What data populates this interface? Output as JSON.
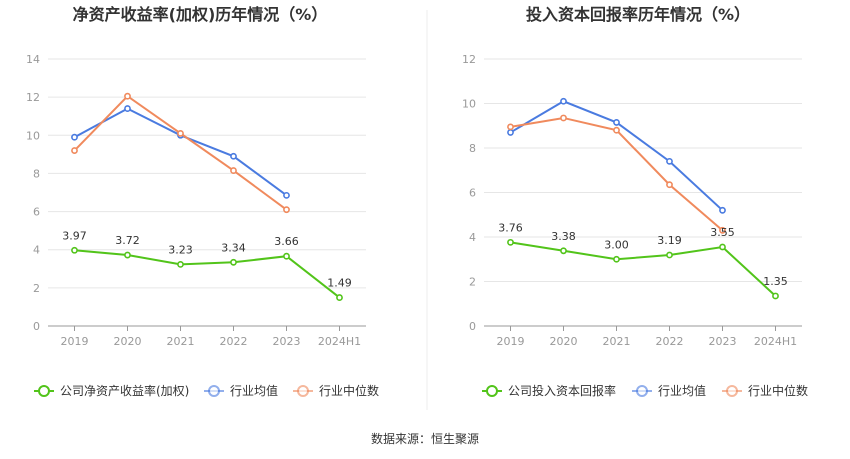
{
  "source_text": "数据来源：恒生聚源",
  "chart_data": [
    {
      "type": "line",
      "title": "净资产收益率(加权)历年情况（%）",
      "categories": [
        "2019",
        "2020",
        "2021",
        "2022",
        "2023",
        "2024H1"
      ],
      "ylim": [
        0,
        14
      ],
      "yticks": [
        0,
        2,
        4,
        6,
        8,
        10,
        12,
        14
      ],
      "grid": true,
      "legend_position": "bottom",
      "series": [
        {
          "name": "公司净资产收益率(加权)",
          "color": "#52c41a",
          "values": [
            3.97,
            3.72,
            3.23,
            3.34,
            3.66,
            1.49
          ],
          "labels": [
            "3.97",
            "3.72",
            "3.23",
            "3.34",
            "3.66",
            "1.49"
          ]
        },
        {
          "name": "行业均值",
          "color": "#4a7be0",
          "values": [
            9.9,
            11.4,
            10.0,
            8.9,
            6.85,
            null
          ]
        },
        {
          "name": "行业中位数",
          "color": "#f08a5d",
          "values": [
            9.2,
            12.05,
            10.1,
            8.15,
            6.1,
            null
          ]
        }
      ]
    },
    {
      "type": "line",
      "title": "投入资本回报率历年情况（%）",
      "categories": [
        "2019",
        "2020",
        "2021",
        "2022",
        "2023",
        "2024H1"
      ],
      "ylim": [
        0,
        12
      ],
      "yticks": [
        0,
        2,
        4,
        6,
        8,
        10,
        12
      ],
      "grid": true,
      "legend_position": "bottom",
      "series": [
        {
          "name": "公司投入资本回报率",
          "color": "#52c41a",
          "values": [
            3.76,
            3.38,
            3.0,
            3.19,
            3.55,
            1.35
          ],
          "labels": [
            "3.76",
            "3.38",
            "3.00",
            "3.19",
            "3.55",
            "1.35"
          ]
        },
        {
          "name": "行业均值",
          "color": "#4a7be0",
          "values": [
            8.7,
            10.1,
            9.15,
            7.4,
            5.2,
            null
          ]
        },
        {
          "name": "行业中位数",
          "color": "#f08a5d",
          "values": [
            8.95,
            9.35,
            8.8,
            6.35,
            4.3,
            null
          ]
        }
      ]
    }
  ]
}
